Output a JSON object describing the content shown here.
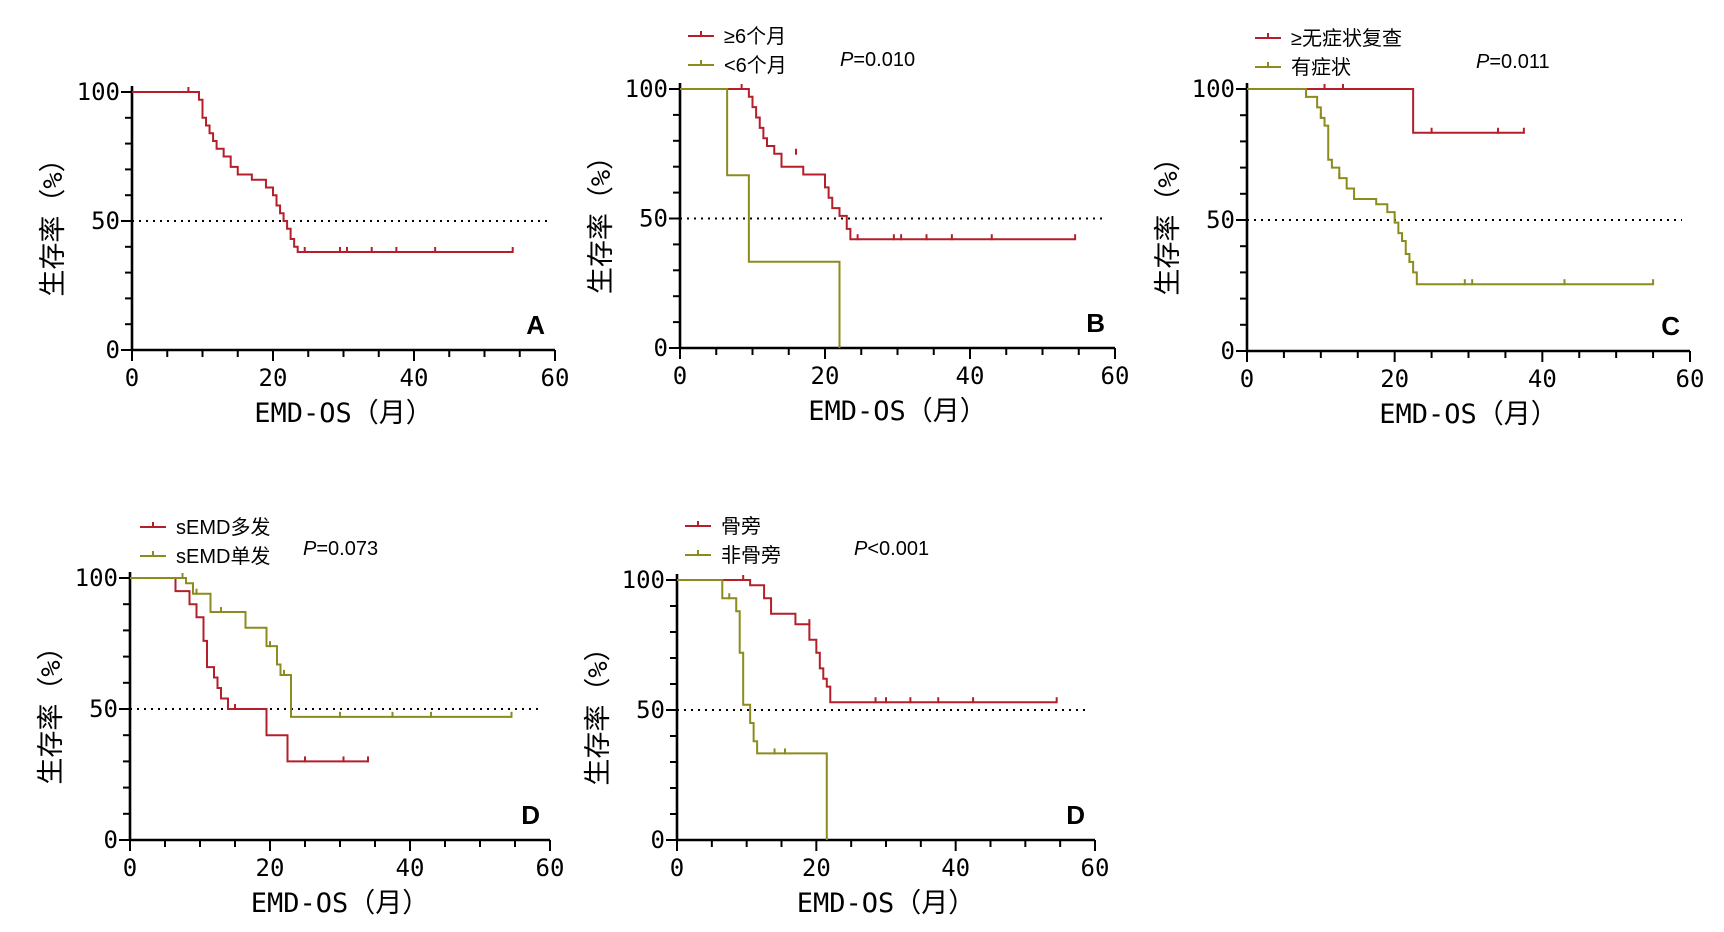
{
  "colors": {
    "red": "#b41f2a",
    "olive": "#8c8c1e"
  },
  "chart_data": [
    {
      "type": "line",
      "panel_label": "A",
      "xlabel": "EMD-OS（月）",
      "ylabel": "生存率（%）",
      "xlim": [
        0,
        60
      ],
      "ylim": [
        0,
        100
      ],
      "xticks": [
        0,
        20,
        40,
        60
      ],
      "yticks": [
        0,
        50,
        100
      ],
      "reference_y": 50,
      "p_value": "",
      "series": [
        {
          "name": "",
          "color": "#b41f2a",
          "steps": [
            [
              0,
              100
            ],
            [
              9.5,
              97
            ],
            [
              10,
              90
            ],
            [
              10.5,
              87
            ],
            [
              11,
              84
            ],
            [
              11.5,
              81
            ],
            [
              12,
              78
            ],
            [
              13,
              75
            ],
            [
              14,
              71
            ],
            [
              15,
              68
            ],
            [
              17,
              66
            ],
            [
              19,
              63
            ],
            [
              20,
              60
            ],
            [
              20.5,
              56
            ],
            [
              21,
              53
            ],
            [
              21.5,
              50
            ],
            [
              22,
              47
            ],
            [
              22.5,
              43
            ],
            [
              23,
              40
            ],
            [
              23.5,
              38
            ],
            [
              54,
              38
            ]
          ],
          "censors": [
            [
              8,
              100
            ],
            [
              24.5,
              38
            ],
            [
              29.5,
              38
            ],
            [
              30.5,
              38
            ],
            [
              34,
              38
            ],
            [
              37.5,
              38
            ],
            [
              43,
              38
            ],
            [
              54,
              38
            ]
          ]
        }
      ]
    },
    {
      "type": "line",
      "panel_label": "B",
      "xlabel": "EMD-OS（月）",
      "ylabel": "生存率（%）",
      "xlim": [
        0,
        60
      ],
      "ylim": [
        0,
        100
      ],
      "xticks": [
        0,
        20,
        40,
        60
      ],
      "yticks": [
        0,
        50,
        100
      ],
      "reference_y": 50,
      "p_value": "P=0.010",
      "series": [
        {
          "name": "≥6个月",
          "color": "#b41f2a",
          "steps": [
            [
              0,
              100
            ],
            [
              9.5,
              97
            ],
            [
              10,
              93
            ],
            [
              10.5,
              89
            ],
            [
              11,
              85
            ],
            [
              11.5,
              81
            ],
            [
              12,
              78
            ],
            [
              13,
              75
            ],
            [
              14,
              70
            ],
            [
              17,
              67
            ],
            [
              20,
              62
            ],
            [
              20.5,
              58
            ],
            [
              21,
              54
            ],
            [
              22,
              51
            ],
            [
              23,
              46
            ],
            [
              23.5,
              42
            ],
            [
              54.5,
              42
            ]
          ],
          "censors": [
            [
              8.5,
              100
            ],
            [
              16,
              75
            ],
            [
              24.5,
              42
            ],
            [
              29.5,
              42
            ],
            [
              30.5,
              42
            ],
            [
              34,
              42
            ],
            [
              37.5,
              42
            ],
            [
              43,
              42
            ],
            [
              54.5,
              42
            ]
          ]
        },
        {
          "name": "<6个月",
          "color": "#8c8c1e",
          "steps": [
            [
              0,
              100
            ],
            [
              6.5,
              66.7
            ],
            [
              9.5,
              33.3
            ],
            [
              22,
              0
            ]
          ],
          "censors": []
        }
      ]
    },
    {
      "type": "line",
      "panel_label": "C",
      "xlabel": "EMD-OS（月）",
      "ylabel": "生存率（%）",
      "xlim": [
        0,
        60
      ],
      "ylim": [
        0,
        100
      ],
      "xticks": [
        0,
        20,
        40,
        60
      ],
      "yticks": [
        0,
        50,
        100
      ],
      "reference_y": 50,
      "p_value": "P=0.011",
      "series": [
        {
          "name": "≥无症状复查",
          "color": "#b41f2a",
          "steps": [
            [
              0,
              100
            ],
            [
              22.5,
              83.3
            ],
            [
              37.5,
              83.3
            ]
          ],
          "censors": [
            [
              10.5,
              100
            ],
            [
              13,
              100
            ],
            [
              25,
              83.3
            ],
            [
              34,
              83.3
            ],
            [
              37.5,
              83.3
            ]
          ]
        },
        {
          "name": "有症状",
          "color": "#8c8c1e",
          "steps": [
            [
              0,
              100
            ],
            [
              8,
              97
            ],
            [
              9.5,
              93
            ],
            [
              10,
              89
            ],
            [
              10.5,
              86
            ],
            [
              11,
              73
            ],
            [
              11.5,
              70
            ],
            [
              12.5,
              66
            ],
            [
              13.5,
              62
            ],
            [
              14.5,
              58
            ],
            [
              17.5,
              56
            ],
            [
              19,
              53
            ],
            [
              20,
              49
            ],
            [
              20.5,
              45
            ],
            [
              21,
              42
            ],
            [
              21.5,
              37
            ],
            [
              22,
              34
            ],
            [
              22.5,
              30
            ],
            [
              23,
              25.5
            ],
            [
              55,
              25.5
            ]
          ],
          "censors": [
            [
              8,
              97
            ],
            [
              10,
              89
            ],
            [
              12.5,
              66
            ],
            [
              21,
              42
            ],
            [
              22,
              34
            ],
            [
              29.5,
              25.5
            ],
            [
              30.5,
              25.5
            ],
            [
              43,
              25.5
            ],
            [
              55,
              25.5
            ]
          ]
        }
      ]
    },
    {
      "type": "line",
      "panel_label": "D",
      "xlabel": "EMD-OS（月）",
      "ylabel": "生存率（%）",
      "xlim": [
        0,
        60
      ],
      "ylim": [
        0,
        100
      ],
      "xticks": [
        0,
        20,
        40,
        60
      ],
      "yticks": [
        0,
        50,
        100
      ],
      "reference_y": 50,
      "p_value": "P=0.073",
      "series": [
        {
          "name": "sEMD多发",
          "color": "#b41f2a",
          "steps": [
            [
              0,
              100
            ],
            [
              6.5,
              95
            ],
            [
              8.5,
              90
            ],
            [
              9.5,
              85
            ],
            [
              10.5,
              76
            ],
            [
              11,
              66
            ],
            [
              12,
              62
            ],
            [
              12.5,
              58
            ],
            [
              13,
              54
            ],
            [
              14,
              50
            ],
            [
              19.5,
              40
            ],
            [
              22.5,
              30
            ],
            [
              34,
              30
            ]
          ],
          "censors": [
            [
              15,
              50
            ],
            [
              25,
              30
            ],
            [
              30.5,
              30
            ],
            [
              34,
              30
            ]
          ]
        },
        {
          "name": "sEMD单发",
          "color": "#8c8c1e",
          "steps": [
            [
              0,
              100
            ],
            [
              8,
              98
            ],
            [
              9,
              94
            ],
            [
              11.5,
              87
            ],
            [
              16.5,
              81
            ],
            [
              19.5,
              74
            ],
            [
              21,
              67
            ],
            [
              21.5,
              63
            ],
            [
              23,
              47
            ],
            [
              54.5,
              47
            ]
          ],
          "censors": [
            [
              7.5,
              100
            ],
            [
              9.5,
              94
            ],
            [
              13,
              87
            ],
            [
              20,
              74
            ],
            [
              22,
              63
            ],
            [
              30,
              47
            ],
            [
              37.5,
              47
            ],
            [
              43,
              47
            ],
            [
              54.5,
              47
            ]
          ]
        }
      ]
    },
    {
      "type": "line",
      "panel_label": "D",
      "xlabel": "EMD-OS（月）",
      "ylabel": "生存率（%）",
      "xlim": [
        0,
        60
      ],
      "ylim": [
        0,
        100
      ],
      "xticks": [
        0,
        20,
        40,
        60
      ],
      "yticks": [
        0,
        50,
        100
      ],
      "reference_y": 50,
      "p_value": "P<0.001",
      "series": [
        {
          "name": "骨旁",
          "color": "#b41f2a",
          "steps": [
            [
              0,
              100
            ],
            [
              10.5,
              98
            ],
            [
              12.5,
              93
            ],
            [
              13.5,
              87
            ],
            [
              17,
              83
            ],
            [
              19,
              77
            ],
            [
              20,
              72
            ],
            [
              20.5,
              66
            ],
            [
              21,
              62
            ],
            [
              21.5,
              59
            ],
            [
              22,
              53
            ],
            [
              54.5,
              53
            ]
          ],
          "censors": [
            [
              9.5,
              100
            ],
            [
              19,
              83
            ],
            [
              28.5,
              53
            ],
            [
              30,
              53
            ],
            [
              33.5,
              53
            ],
            [
              37.5,
              53
            ],
            [
              42.5,
              53
            ],
            [
              54.5,
              53
            ]
          ]
        },
        {
          "name": "非骨旁",
          "color": "#8c8c1e",
          "steps": [
            [
              0,
              100
            ],
            [
              6.5,
              93
            ],
            [
              8.5,
              88
            ],
            [
              9,
              72
            ],
            [
              9.5,
              52
            ],
            [
              10.5,
              45
            ],
            [
              11,
              38
            ],
            [
              11.5,
              33.3
            ],
            [
              21.5,
              0
            ]
          ],
          "censors": [
            [
              7.5,
              93
            ],
            [
              14,
              33.3
            ],
            [
              15.5,
              33.3
            ]
          ]
        }
      ]
    }
  ]
}
